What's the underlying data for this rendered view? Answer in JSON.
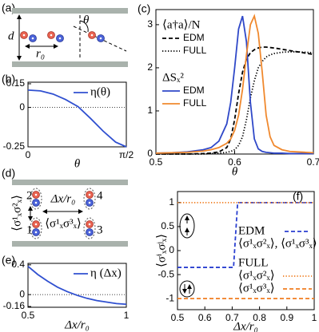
{
  "diagrams": {
    "a": {
      "panel_label": "(a)",
      "labels": {
        "d": "d",
        "theta": "θ",
        "r0": "r₀"
      }
    },
    "d": {
      "panel_label": "(d)",
      "sites": [
        "1",
        "2",
        "3",
        "4"
      ],
      "spacing": "Δx/r₀",
      "pair_vertical": "⟨σ¹ₓσ²ₓ⟩",
      "pair_horizontal": "⟨σ¹ₓσ³ₓ⟩"
    }
  },
  "chart_data": [
    {
      "type": "line",
      "panel_label": "(b)",
      "xlabel": "θ",
      "x": [
        0,
        0.2,
        0.4,
        0.6,
        0.8,
        1.0,
        1.2,
        1.4,
        1.5708
      ],
      "series": [
        {
          "name": "η(θ)",
          "color": "#3050d0",
          "style": "solid",
          "values": [
            0.11,
            0.105,
            0.085,
            0.05,
            0.005,
            -0.07,
            -0.15,
            -0.22,
            -0.25
          ]
        }
      ],
      "xlim": [
        0,
        1.5708
      ],
      "xticks": [
        0,
        {
          "value": 1.5708,
          "label": "π/2"
        }
      ],
      "ylim": [
        -0.25,
        0.16
      ],
      "yticks": [
        0.15,
        0,
        -0.25
      ],
      "zero_line": true,
      "legend": "upper right"
    },
    {
      "type": "line",
      "panel_label": "(c)",
      "xlabel": "θ",
      "x": [
        0.5,
        0.52,
        0.54,
        0.56,
        0.57,
        0.58,
        0.59,
        0.595,
        0.6,
        0.605,
        0.61,
        0.615,
        0.62,
        0.625,
        0.63,
        0.635,
        0.64,
        0.645,
        0.65,
        0.66,
        0.67,
        0.68,
        0.69,
        0.7
      ],
      "series_groups": [
        {
          "title": "⟨a†a⟩/N",
          "series": [
            {
              "name": "EDM",
              "color": "#000000",
              "style": "dashed",
              "values": [
                0,
                0,
                0,
                0.01,
                0.02,
                0.05,
                0.15,
                0.35,
                0.8,
                1.4,
                1.9,
                2.2,
                2.35,
                2.42,
                2.46,
                2.48,
                2.48,
                2.47,
                2.46,
                2.43,
                2.4,
                2.37,
                2.34,
                2.31
              ]
            },
            {
              "name": "FULL",
              "color": "#000000",
              "style": "dotted",
              "values": [
                0,
                0,
                0,
                0,
                0.01,
                0.02,
                0.04,
                0.06,
                0.1,
                0.2,
                0.4,
                0.8,
                1.3,
                1.7,
                2.0,
                2.15,
                2.25,
                2.3,
                2.33,
                2.36,
                2.37,
                2.37,
                2.36,
                2.35
              ]
            }
          ]
        },
        {
          "title": "ΔSₓ²",
          "series": [
            {
              "name": "EDM",
              "color": "#2f48c8",
              "style": "solid",
              "values": [
                0.02,
                0.03,
                0.05,
                0.1,
                0.15,
                0.3,
                0.7,
                1.2,
                2.0,
                2.9,
                3.2,
                2.6,
                1.2,
                0.35,
                0.12,
                0.06,
                0.04,
                0.03,
                0.02,
                0.02,
                0.01,
                0.01,
                0.01,
                0.01
              ]
            },
            {
              "name": "FULL",
              "color": "#f0892e",
              "style": "solid",
              "values": [
                0.02,
                0.03,
                0.04,
                0.07,
                0.1,
                0.15,
                0.25,
                0.35,
                0.55,
                0.9,
                1.5,
                2.3,
                3.0,
                3.2,
                2.8,
                1.9,
                0.9,
                0.4,
                0.2,
                0.1,
                0.06,
                0.05,
                0.04,
                0.03
              ]
            }
          ]
        }
      ],
      "xlim": [
        0.5,
        0.7
      ],
      "xticks": [
        0.5,
        0.6,
        0.7
      ],
      "ylim": [
        0,
        3.35
      ],
      "yticks": [
        0,
        1,
        2,
        3
      ]
    },
    {
      "type": "line",
      "panel_label": "(e)",
      "xlabel": "Δx/r₀",
      "x": [
        0.5,
        0.55,
        0.6,
        0.65,
        0.7,
        0.75,
        0.8,
        0.85,
        0.9,
        0.95,
        1.0
      ],
      "series": [
        {
          "name": "η (Δx)",
          "color": "#3050d0",
          "style": "solid",
          "values": [
            0.38,
            0.27,
            0.18,
            0.1,
            0.04,
            -0.01,
            -0.05,
            -0.08,
            -0.1,
            -0.12,
            -0.13
          ]
        }
      ],
      "xlim": [
        0.5,
        1
      ],
      "xticks": [
        0.5,
        1
      ],
      "ylim": [
        -0.17,
        0.42
      ],
      "yticks": [
        0.4,
        0,
        -0.16
      ],
      "zero_line": true,
      "legend": "upper right"
    },
    {
      "type": "line",
      "panel_label": "(f)",
      "xlabel": "Δx/r₀",
      "ylabel": "⟨σⁱₓσʲₓ⟩",
      "series_groups": [
        {
          "title": "EDM",
          "series": [
            {
              "name": "⟨σ¹ₓσ²ₓ⟩, ⟨σ¹ₓσ³ₓ⟩",
              "color": "#2a3fd0",
              "style": "dashed",
              "x": [
                0.5,
                0.705,
                0.72,
                1
              ],
              "values": [
                -0.35,
                -0.35,
                1,
                1
              ]
            }
          ]
        },
        {
          "title": "FULL",
          "series": [
            {
              "name": "⟨σ¹ₓσ²ₓ⟩",
              "color": "#f07d20",
              "style": "dotted",
              "x": [
                0.5,
                1
              ],
              "values": [
                1,
                1
              ]
            },
            {
              "name": "⟨σ¹ₓσ³ₓ⟩",
              "color": "#f07d20",
              "style": "dashed",
              "x": [
                0.5,
                1
              ],
              "values": [
                -1,
                -1
              ]
            }
          ]
        }
      ],
      "xlim": [
        0.5,
        1
      ],
      "xticks": [
        0.5,
        0.6,
        0.7,
        0.8,
        0.9,
        1
      ],
      "ylim": [
        -1.23,
        1.23
      ],
      "yticks": [
        -1,
        -0.5,
        0,
        0.5,
        1
      ]
    }
  ]
}
